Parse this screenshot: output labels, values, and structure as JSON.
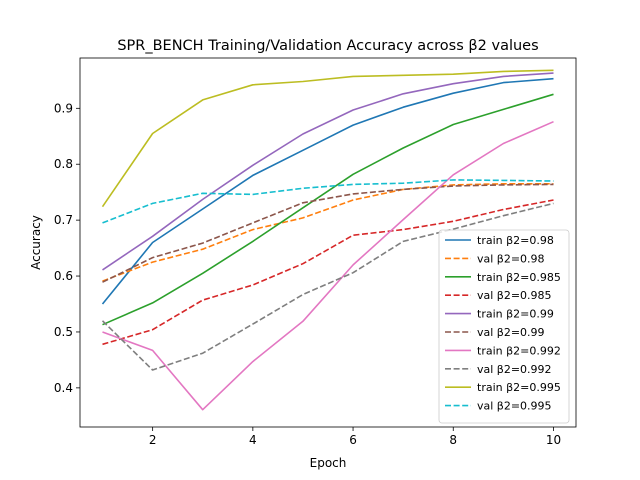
{
  "chart_data": {
    "type": "line",
    "title": "SPR_BENCH Training/Validation Accuracy across β2 values",
    "xlabel": "Epoch",
    "ylabel": "Accuracy",
    "xlim": [
      0.55,
      10.45
    ],
    "ylim": [
      0.33,
      0.99
    ],
    "xticks": [
      2,
      4,
      6,
      8,
      10
    ],
    "yticks": [
      0.4,
      0.5,
      0.6,
      0.7,
      0.8,
      0.9
    ],
    "grid": false,
    "legend_position": "lower-right",
    "x": [
      1,
      2,
      3,
      4,
      5,
      6,
      7,
      8,
      9,
      10
    ],
    "series": [
      {
        "name": "train β2=0.98",
        "color": "#1f77b4",
        "style": "solid",
        "values": [
          0.55,
          0.66,
          0.72,
          0.78,
          0.825,
          0.87,
          0.902,
          0.927,
          0.946,
          0.953
        ]
      },
      {
        "name": "val β2=0.98",
        "color": "#ff7f0e",
        "style": "dashed",
        "values": [
          0.591,
          0.625,
          0.648,
          0.683,
          0.704,
          0.736,
          0.755,
          0.763,
          0.765,
          0.765
        ]
      },
      {
        "name": "train β2=0.985",
        "color": "#2ca02c",
        "style": "solid",
        "values": [
          0.513,
          0.552,
          0.605,
          0.662,
          0.722,
          0.782,
          0.829,
          0.871,
          0.898,
          0.925
        ]
      },
      {
        "name": "val β2=0.985",
        "color": "#d62728",
        "style": "dashed",
        "values": [
          0.478,
          0.504,
          0.557,
          0.584,
          0.622,
          0.673,
          0.683,
          0.698,
          0.719,
          0.736
        ]
      },
      {
        "name": "train β2=0.99",
        "color": "#9467bd",
        "style": "solid",
        "values": [
          0.611,
          0.671,
          0.737,
          0.798,
          0.854,
          0.897,
          0.926,
          0.944,
          0.957,
          0.963
        ]
      },
      {
        "name": "val β2=0.99",
        "color": "#8c564b",
        "style": "dashed",
        "values": [
          0.589,
          0.633,
          0.659,
          0.695,
          0.731,
          0.747,
          0.755,
          0.761,
          0.763,
          0.764
        ]
      },
      {
        "name": "train β2=0.992",
        "color": "#e377c2",
        "style": "solid",
        "values": [
          0.5,
          0.467,
          0.361,
          0.447,
          0.519,
          0.62,
          0.701,
          0.781,
          0.837,
          0.876
        ]
      },
      {
        "name": "val β2=0.992",
        "color": "#7f7f7f",
        "style": "dashed",
        "values": [
          0.52,
          0.432,
          0.462,
          0.514,
          0.567,
          0.606,
          0.662,
          0.684,
          0.708,
          0.73
        ]
      },
      {
        "name": "train β2=0.995",
        "color": "#bcbd22",
        "style": "solid",
        "values": [
          0.724,
          0.855,
          0.915,
          0.942,
          0.948,
          0.957,
          0.959,
          0.961,
          0.966,
          0.968
        ]
      },
      {
        "name": "val β2=0.995",
        "color": "#17becf",
        "style": "dashed",
        "values": [
          0.695,
          0.73,
          0.748,
          0.746,
          0.757,
          0.764,
          0.766,
          0.772,
          0.771,
          0.77
        ]
      }
    ]
  }
}
